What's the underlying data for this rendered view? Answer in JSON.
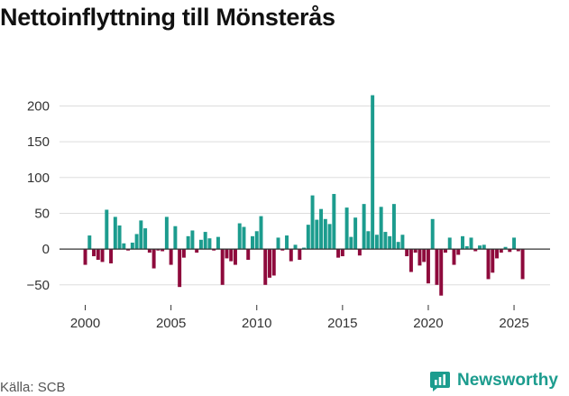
{
  "header": {
    "title": "Nettoinflyttning till Mönsterås"
  },
  "footer": {
    "source": "Källa: SCB",
    "brand": "Newsworthy"
  },
  "colors": {
    "positive": "#1c9c8e",
    "negative": "#8e0a3c",
    "grid": "#dddddd",
    "zero_line": "#333333",
    "brand": "#1c9c8e"
  },
  "chart_data": {
    "type": "bar",
    "title": "Nettoinflyttning till Mönsterås",
    "xlabel": "",
    "ylabel": "",
    "frequency": "quarterly",
    "xlim": [
      1998.5,
      2027.1
    ],
    "ylim": [
      -78,
      222
    ],
    "yticks": [
      -50,
      0,
      50,
      100,
      150,
      200
    ],
    "ytick_labels": [
      "−50",
      "0",
      "50",
      "100",
      "150",
      "200"
    ],
    "xticks": [
      2000,
      2005,
      2010,
      2015,
      2020,
      2025
    ],
    "xtick_labels": [
      "2000",
      "2005",
      "2010",
      "2015",
      "2020",
      "2025"
    ],
    "start": 2000,
    "values": [
      -22,
      19,
      -10,
      -15,
      -18,
      55,
      -20,
      45,
      33,
      8,
      -2,
      9,
      21,
      40,
      29,
      -5,
      -27,
      -2,
      -3,
      45,
      -22,
      32,
      -53,
      -12,
      18,
      26,
      -5,
      13,
      24,
      15,
      -2,
      17,
      -50,
      -13,
      -17,
      -22,
      36,
      31,
      -15,
      18,
      25,
      46,
      -50,
      -40,
      -37,
      16,
      -2,
      19,
      -17,
      6,
      -15,
      2,
      34,
      75,
      41,
      56,
      42,
      35,
      77,
      -12,
      -10,
      58,
      17,
      44,
      -9,
      63,
      25,
      215,
      20,
      59,
      24,
      18,
      63,
      10,
      20,
      -10,
      -32,
      -5,
      -23,
      -18,
      -48,
      42,
      -50,
      -65,
      -5,
      16,
      -22,
      -8,
      18,
      4,
      16,
      -3,
      5,
      6,
      -42,
      -33,
      -13,
      -5,
      3,
      -4,
      16,
      -3,
      -42
    ]
  }
}
